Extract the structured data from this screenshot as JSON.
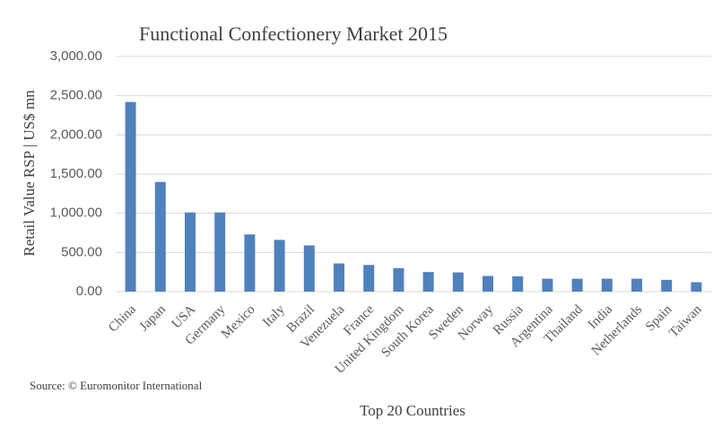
{
  "chart_data": {
    "type": "bar",
    "title": "Functional Confectionery Market 2015",
    "y_label": "Retail Value RSP | US$ mn",
    "x_label": "Top 20 Countries",
    "source": "Source: © Euromonitor International",
    "categories": [
      "China",
      "Japan",
      "USA",
      "Germany",
      "Mexico",
      "Italy",
      "Brazil",
      "Venezuela",
      "France",
      "United Kingdom",
      "South Korea",
      "Sweden",
      "Norway",
      "Russia",
      "Argentina",
      "Thailand",
      "India",
      "Netherlands",
      "Spain",
      "Taiwan"
    ],
    "values": [
      2420,
      1400,
      1010,
      1010,
      730,
      660,
      590,
      360,
      340,
      300,
      250,
      245,
      200,
      195,
      165,
      165,
      165,
      165,
      150,
      120
    ],
    "color": "#4f81bd",
    "ylim": [
      0,
      3000
    ],
    "yticks": [
      {
        "value": 0,
        "label": "0.00"
      },
      {
        "value": 500,
        "label": "500.00"
      },
      {
        "value": 1000,
        "label": "1,000.00"
      },
      {
        "value": 1500,
        "label": "1,500.00"
      },
      {
        "value": 2000,
        "label": "2,000.00"
      },
      {
        "value": 2500,
        "label": "2,500.00"
      },
      {
        "value": 3000,
        "label": "3,000.00"
      }
    ],
    "grid": true
  }
}
